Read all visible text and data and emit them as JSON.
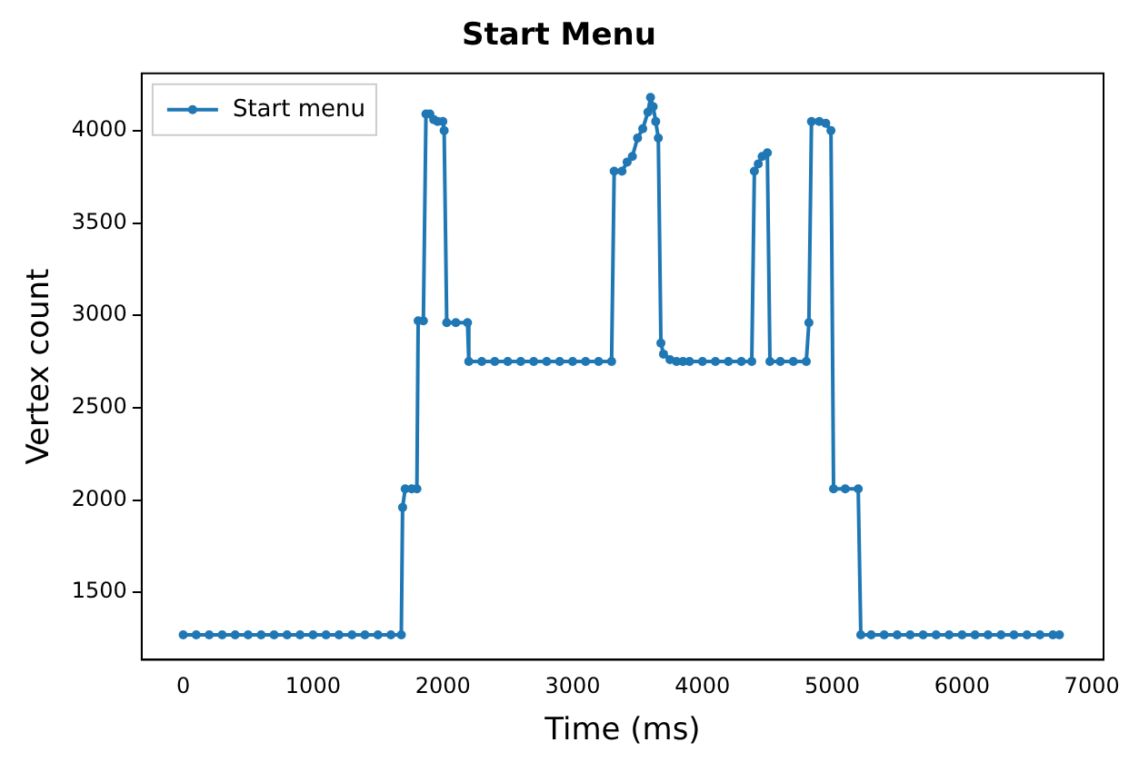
{
  "chart_data": {
    "type": "line",
    "title": "Start Menu",
    "xlabel": "Time (ms)",
    "ylabel": "Vertex count",
    "xlim": [
      -320,
      7090
    ],
    "xticks": [
      0,
      1000,
      2000,
      3000,
      4000,
      5000,
      6000,
      7000
    ],
    "ylim": [
      1135,
      4310
    ],
    "yticks": [
      1500,
      2000,
      2500,
      3000,
      3500,
      4000
    ],
    "grid": false,
    "legend": "top left",
    "marker": "circle",
    "line_style": "solid",
    "series": [
      {
        "name": "Start menu",
        "color": "#1f77b4",
        "x": [
          0,
          100,
          200,
          300,
          400,
          500,
          600,
          700,
          800,
          900,
          1000,
          1100,
          1200,
          1300,
          1400,
          1500,
          1600,
          1680,
          1690,
          1710,
          1760,
          1800,
          1810,
          1850,
          1870,
          1900,
          1930,
          1960,
          2000,
          2010,
          2030,
          2100,
          2190,
          2200,
          2300,
          2400,
          2500,
          2600,
          2700,
          2800,
          2900,
          3000,
          3100,
          3200,
          3300,
          3320,
          3380,
          3420,
          3460,
          3500,
          3540,
          3580,
          3600,
          3620,
          3640,
          3660,
          3680,
          3700,
          3750,
          3800,
          3850,
          3900,
          4000,
          4100,
          4200,
          4300,
          4380,
          4400,
          4430,
          4460,
          4500,
          4520,
          4600,
          4700,
          4800,
          4820,
          4840,
          4900,
          4950,
          4990,
          5010,
          5100,
          5200,
          5220,
          5300,
          5400,
          5500,
          5600,
          5700,
          5800,
          5900,
          6000,
          6100,
          6200,
          6300,
          6400,
          6500,
          6600,
          6700,
          6750
        ],
        "values": [
          1270,
          1270,
          1270,
          1270,
          1270,
          1270,
          1270,
          1270,
          1270,
          1270,
          1270,
          1270,
          1270,
          1270,
          1270,
          1270,
          1270,
          1270,
          1960,
          2060,
          2060,
          2060,
          2970,
          2970,
          4090,
          4090,
          4060,
          4050,
          4050,
          4000,
          2960,
          2960,
          2960,
          2750,
          2750,
          2750,
          2750,
          2750,
          2750,
          2750,
          2750,
          2750,
          2750,
          2750,
          2750,
          3780,
          3780,
          3830,
          3860,
          3960,
          4010,
          4100,
          4180,
          4130,
          4050,
          3960,
          2850,
          2790,
          2760,
          2750,
          2750,
          2750,
          2750,
          2750,
          2750,
          2750,
          2750,
          3780,
          3820,
          3860,
          3880,
          2750,
          2750,
          2750,
          2750,
          2960,
          4050,
          4050,
          4040,
          4000,
          2060,
          2060,
          2060,
          1270,
          1270,
          1270,
          1270,
          1270,
          1270,
          1270,
          1270,
          1270,
          1270,
          1270,
          1270,
          1270,
          1270,
          1270,
          1270,
          1270
        ]
      }
    ]
  }
}
